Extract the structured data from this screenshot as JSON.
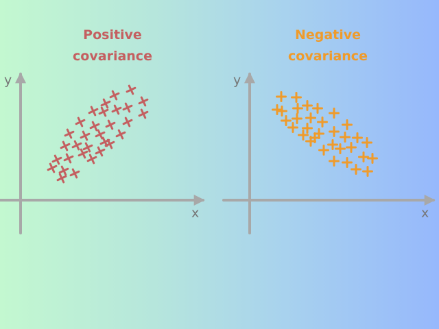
{
  "panels": [
    {
      "title": "Positive\ncovariance",
      "color": "#c45f60",
      "x_label": "x",
      "y_label": "y",
      "relationship": "positive"
    },
    {
      "title": "Negative\ncovariance",
      "color": "#ef9b2b",
      "x_label": "x",
      "y_label": "y",
      "relationship": "negative"
    }
  ],
  "colors": {
    "axis": "#a8a8a8",
    "axis_label": "#767676"
  },
  "marker": "+"
}
